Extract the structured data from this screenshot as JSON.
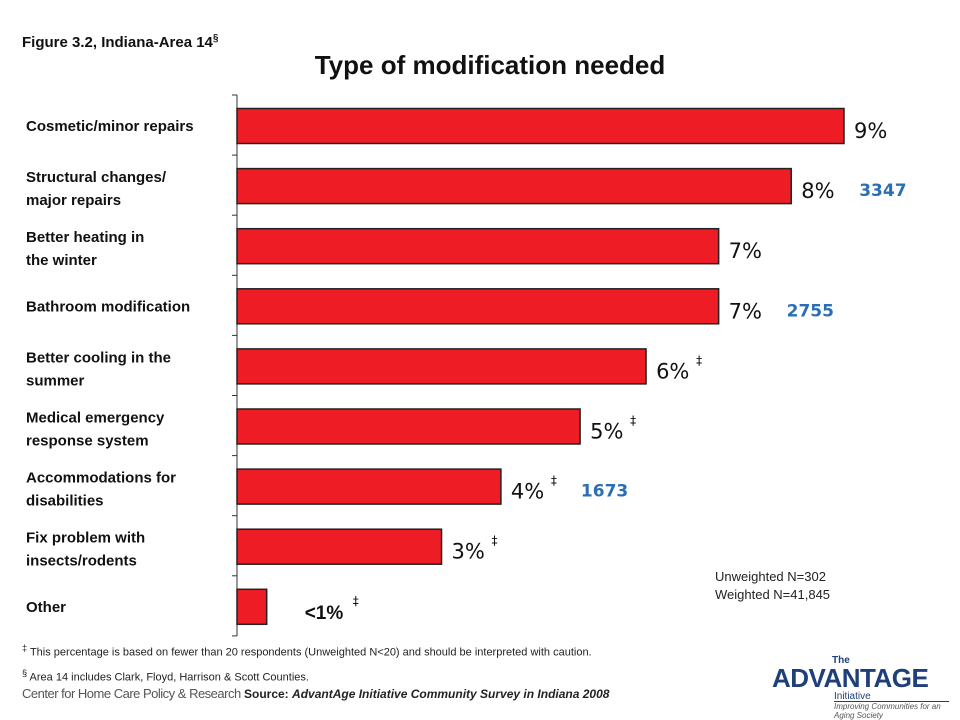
{
  "figure": {
    "label": "Figure 3.2, Indiana-Area 14",
    "mark": "§"
  },
  "chart_data": {
    "type": "bar",
    "orientation": "horizontal",
    "title": "Type of modification needed",
    "categories": [
      [
        "Cosmetic/minor repairs"
      ],
      [
        "Structural changes/",
        "major repairs"
      ],
      [
        "Better heating in",
        "the winter"
      ],
      [
        "Bathroom modification"
      ],
      [
        "Better cooling in the",
        "summer"
      ],
      [
        "Medical emergency",
        " response system"
      ],
      [
        " Accommodations for",
        " disabilities"
      ],
      [
        " Fix problem with",
        " insects/rodents"
      ],
      [
        " Other"
      ]
    ],
    "values": [
      9.2,
      8.4,
      7.3,
      7.3,
      6.2,
      5.2,
      4.0,
      3.1,
      0.45
    ],
    "value_labels": [
      "9%",
      "8%",
      "7%",
      "7%",
      "6%",
      "5%",
      "4%",
      "3%",
      "<1%"
    ],
    "dagger": [
      false,
      false,
      false,
      false,
      true,
      true,
      true,
      true,
      true
    ],
    "counts": [
      "",
      "3347",
      "",
      "2755",
      "",
      "",
      "1673",
      "",
      ""
    ],
    "xlim": [
      0,
      10
    ],
    "bar_color": "#ee1c24",
    "grid": false,
    "legend": "none"
  },
  "sample": {
    "unweighted": "Unweighted N=302",
    "weighted": "Weighted N=41,845"
  },
  "footnotes": {
    "dagger_mark": "‡",
    "dagger_text": "This percentage is based on fewer than 20 respondents (Unweighted N<20) and should be interpreted with caution.",
    "section_mark": "§",
    "section_text": "Area 14 includes Clark, Floyd, Harrison & Scott Counties."
  },
  "source": {
    "prefix": "Source:",
    "text": "AdvantAge Initiative Community Survey in Indiana 2008"
  },
  "logos": {
    "left": "Center for Home Care Policy & Research",
    "right_the": "The",
    "right_main": "ADVANTAGE",
    "right_sub": "Initiative",
    "right_tagline": "Improving Communities for an Aging Society"
  },
  "colors": {
    "count_text": "#2a6fb5",
    "logo_blue": "#1e3f7a"
  }
}
